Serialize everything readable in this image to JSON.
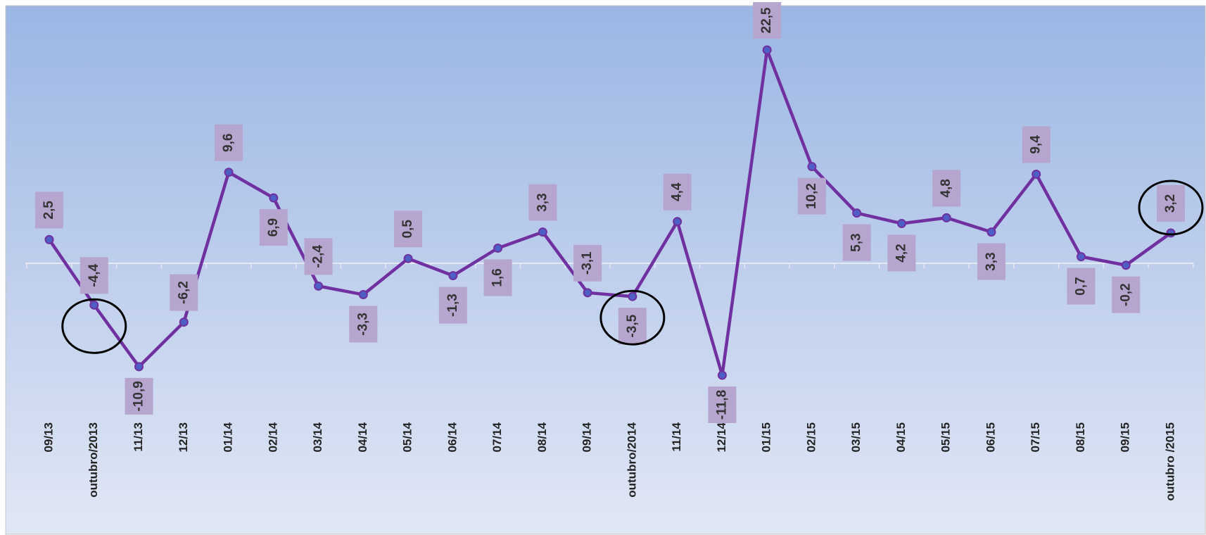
{
  "chart_data": {
    "type": "line",
    "categories": [
      "09/13",
      "outubro/2013",
      "11/13",
      "12/13",
      "01/14",
      "02/14",
      "03/14",
      "04/14",
      "05/14",
      "06/14",
      "07/14",
      "08/14",
      "09/14",
      "outubro/2014",
      "11/14",
      "12/14",
      "01/15",
      "02/15",
      "03/15",
      "04/15",
      "05/15",
      "06/15",
      "07/15",
      "08/15",
      "09/15",
      "outubro /2015"
    ],
    "series": [
      {
        "color": "#7030a0",
        "values": [
          2.5,
          -4.4,
          -10.9,
          -6.2,
          9.6,
          6.9,
          -2.4,
          -3.3,
          0.5,
          -1.3,
          1.6,
          3.3,
          -3.1,
          -3.5,
          4.4,
          -11.8,
          22.5,
          10.2,
          5.3,
          4.2,
          4.8,
          3.3,
          9.4,
          0.7,
          -0.2,
          3.2
        ],
        "value_labels": [
          "2,5",
          "-4,4",
          "-10,9",
          "-6,2",
          "9,6",
          "6,9",
          "-2,4",
          "-3,3",
          "0,5",
          "-1,3",
          "1,6",
          "3,3",
          "-3,1",
          "-3,5",
          "4,4",
          "-11,8",
          "22,5",
          "10,2",
          "5,3",
          "4,2",
          "4,8",
          "3,3",
          "9,4",
          "0,7",
          "-0,2",
          "3,2"
        ]
      }
    ]
  }
}
